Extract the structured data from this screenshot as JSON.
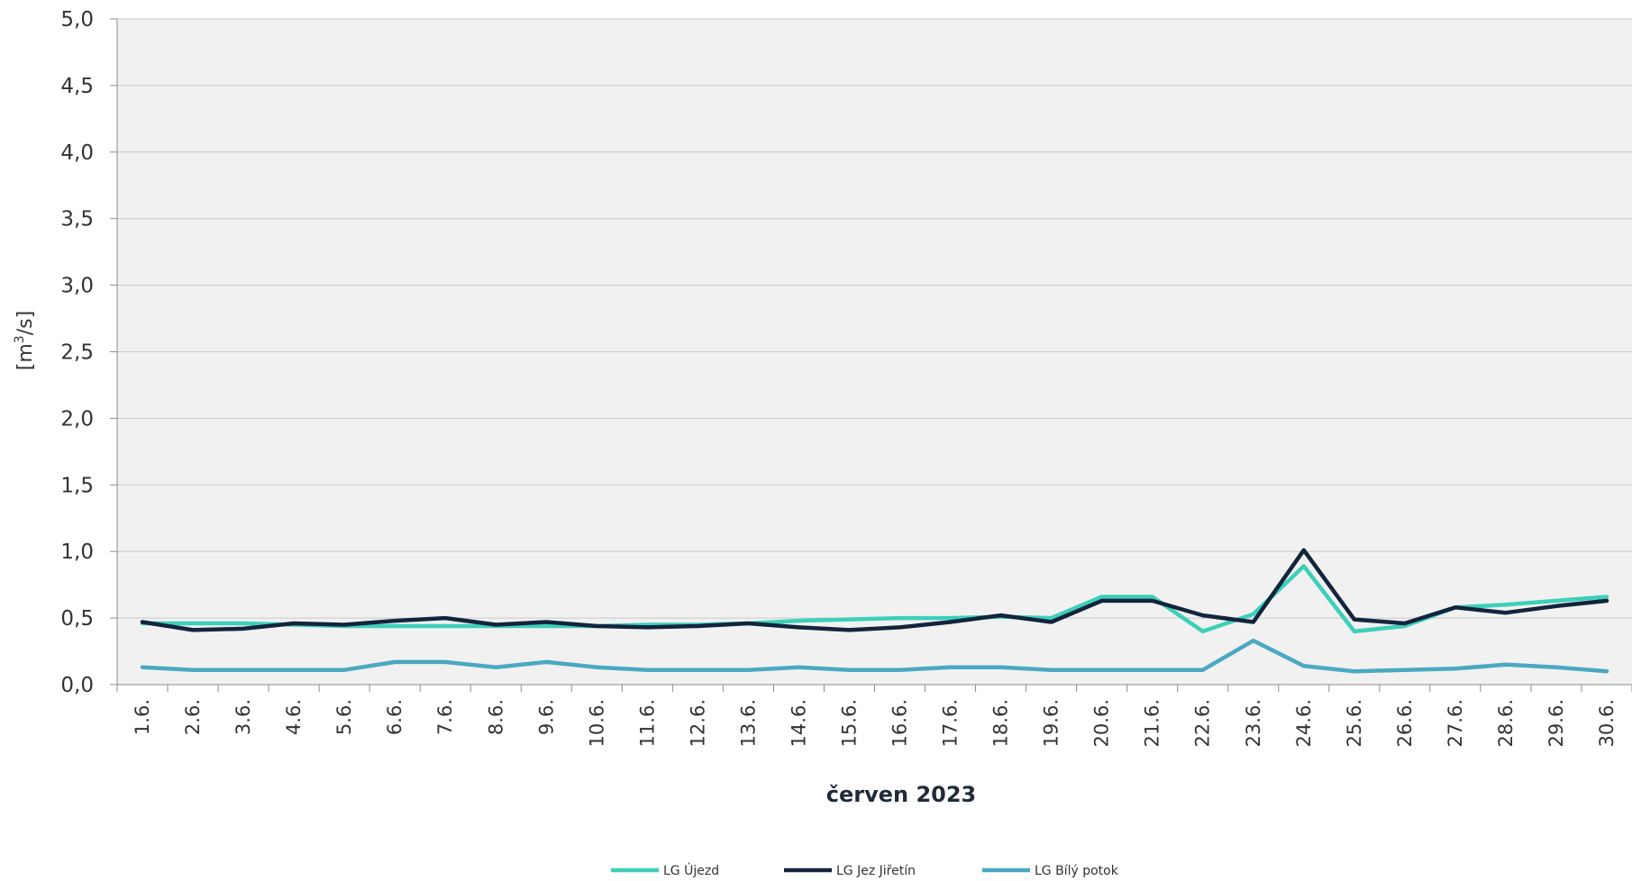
{
  "chart_data": {
    "type": "line",
    "title": "",
    "xlabel": "červen 2023",
    "ylabel_parts": [
      "[m",
      "3",
      "/s]"
    ],
    "ylim": [
      0,
      5
    ],
    "yticks": [
      "0,0",
      "0,5",
      "1,0",
      "1,5",
      "2,0",
      "2,5",
      "3,0",
      "3,5",
      "4,0",
      "4,5",
      "5,0"
    ],
    "ytick_values": [
      0,
      0.5,
      1,
      1.5,
      2,
      2.5,
      3,
      3.5,
      4,
      4.5,
      5
    ],
    "grid": true,
    "legend_position": "bottom",
    "categories": [
      "1.6.",
      "2.6.",
      "3.6.",
      "4.6.",
      "5.6.",
      "6.6.",
      "7.6.",
      "8.6.",
      "9.6.",
      "10.6.",
      "11.6.",
      "12.6.",
      "13.6.",
      "14.6.",
      "15.6.",
      "16.6.",
      "17.6.",
      "18.6.",
      "19.6.",
      "20.6.",
      "21.6.",
      "22.6.",
      "23.6.",
      "24.6.",
      "25.6.",
      "26.6.",
      "27.6.",
      "28.6.",
      "29.6.",
      "30.6."
    ],
    "series": [
      {
        "name": "LG Újezd",
        "color": "#3ecfb9",
        "values": [
          0.46,
          0.46,
          0.46,
          0.45,
          0.44,
          0.44,
          0.44,
          0.44,
          0.44,
          0.44,
          0.45,
          0.45,
          0.46,
          0.48,
          0.49,
          0.5,
          0.5,
          0.51,
          0.5,
          0.66,
          0.66,
          0.4,
          0.53,
          0.89,
          0.4,
          0.44,
          0.58,
          0.6,
          0.63,
          0.66
        ]
      },
      {
        "name": "LG Jez Jiřetín",
        "color": "#13243d",
        "values": [
          0.47,
          0.41,
          0.42,
          0.46,
          0.45,
          0.48,
          0.5,
          0.45,
          0.47,
          0.44,
          0.43,
          0.44,
          0.46,
          0.43,
          0.41,
          0.43,
          0.47,
          0.52,
          0.47,
          0.63,
          0.63,
          0.52,
          0.47,
          1.01,
          0.49,
          0.46,
          0.58,
          0.54,
          0.59,
          0.63
        ]
      },
      {
        "name": "LG Bílý potok",
        "color": "#4aa8c2",
        "values": [
          0.13,
          0.11,
          0.11,
          0.11,
          0.11,
          0.17,
          0.17,
          0.13,
          0.17,
          0.13,
          0.11,
          0.11,
          0.11,
          0.13,
          0.11,
          0.11,
          0.13,
          0.13,
          0.11,
          0.11,
          0.11,
          0.11,
          0.33,
          0.14,
          0.1,
          0.11,
          0.12,
          0.15,
          0.13,
          0.1
        ]
      }
    ]
  }
}
